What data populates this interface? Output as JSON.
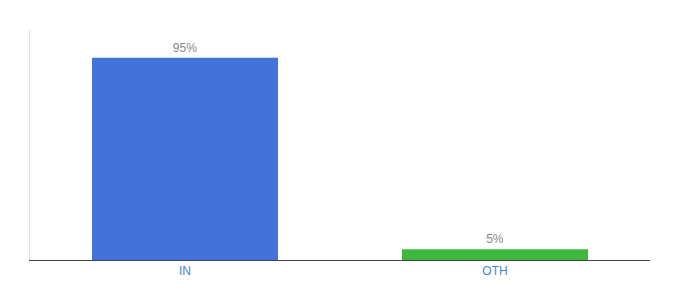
{
  "chart_data": {
    "type": "bar",
    "categories": [
      "IN",
      "OTH"
    ],
    "values": [
      95,
      5
    ],
    "value_labels": [
      "95%",
      "5%"
    ],
    "colors": [
      "#4472db",
      "#3db83d"
    ],
    "ylim": [
      0,
      108
    ],
    "data_labels": true,
    "tick_labels": "x",
    "grid": false
  }
}
